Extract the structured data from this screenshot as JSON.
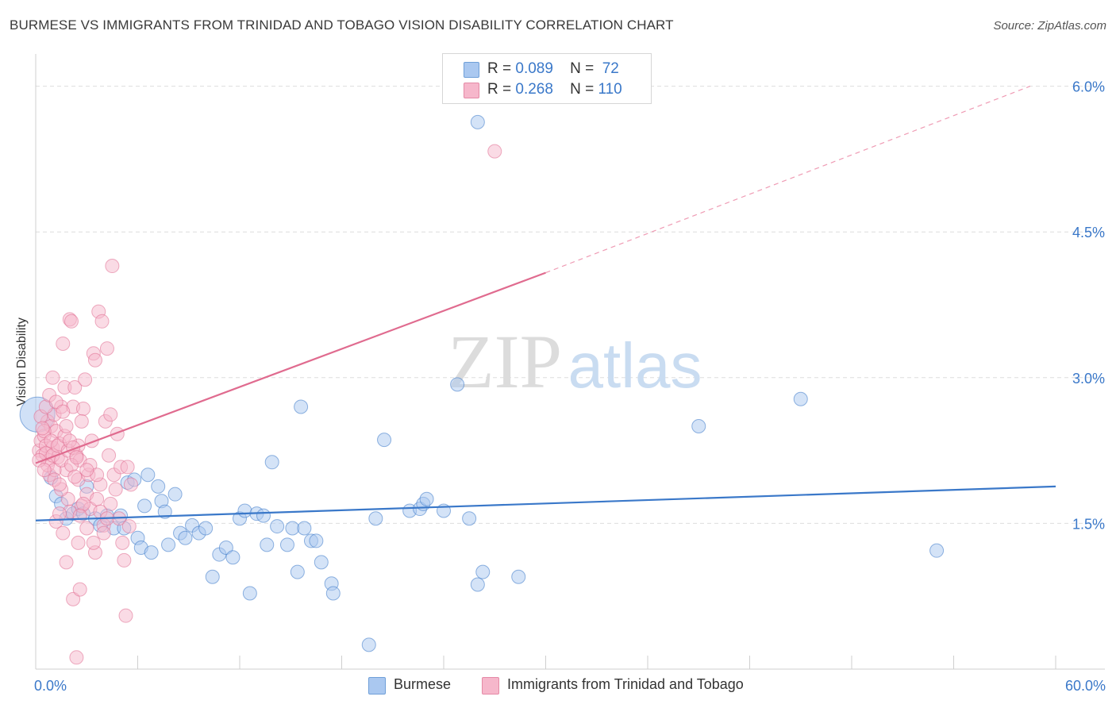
{
  "title": "BURMESE VS IMMIGRANTS FROM TRINIDAD AND TOBAGO VISION DISABILITY CORRELATION CHART",
  "source": "Source: ZipAtlas.com",
  "watermark": {
    "zip": "ZIP",
    "atlas": "atlas"
  },
  "legend_top": {
    "rows": [
      {
        "r_label": "R =",
        "r_value": "0.089",
        "n_label": "N =",
        "n_value": "72",
        "color": "#aac8f0"
      },
      {
        "r_label": "R =",
        "r_value": "0.268",
        "n_label": "N =",
        "n_value": "110",
        "color": "#f6b7cb"
      }
    ]
  },
  "legend_bottom": {
    "items": [
      {
        "label": "Burmese",
        "color": "#aac8f0"
      },
      {
        "label": "Immigrants from Trinidad and Tobago",
        "color": "#f6b7cb"
      }
    ]
  },
  "chart_data": {
    "type": "scatter",
    "title": "BURMESE VS IMMIGRANTS FROM TRINIDAD AND TOBAGO VISION DISABILITY CORRELATION CHART",
    "xlabel": "",
    "ylabel": "Vision Disability",
    "xlim": [
      0,
      60
    ],
    "ylim": [
      0,
      6.25
    ],
    "x_tick_labels": [
      "0.0%",
      "60.0%"
    ],
    "y_ticks": [
      1.5,
      3.0,
      4.5,
      6.0
    ],
    "y_tick_labels": [
      "1.5%",
      "3.0%",
      "4.5%",
      "6.0%"
    ],
    "grid": true,
    "series": [
      {
        "name": "Burmese",
        "color": "#3a78c9",
        "fill": "#aac8f0",
        "trend": {
          "x": [
            0,
            60
          ],
          "y": [
            1.53,
            1.88
          ]
        },
        "points": [
          [
            0.1,
            2.62
          ],
          [
            0.9,
            1.97
          ],
          [
            1.2,
            1.78
          ],
          [
            1.5,
            1.7
          ],
          [
            1.8,
            1.55
          ],
          [
            2.2,
            1.6
          ],
          [
            2.5,
            1.65
          ],
          [
            2.8,
            1.6
          ],
          [
            3.0,
            1.88
          ],
          [
            3.5,
            1.55
          ],
          [
            3.8,
            1.48
          ],
          [
            4.2,
            1.58
          ],
          [
            4.6,
            1.45
          ],
          [
            5.0,
            1.58
          ],
          [
            5.2,
            1.45
          ],
          [
            5.4,
            1.92
          ],
          [
            5.8,
            1.95
          ],
          [
            6.0,
            1.35
          ],
          [
            6.2,
            1.25
          ],
          [
            6.4,
            1.68
          ],
          [
            6.6,
            2.0
          ],
          [
            6.8,
            1.2
          ],
          [
            7.2,
            1.88
          ],
          [
            7.4,
            1.73
          ],
          [
            7.6,
            1.62
          ],
          [
            7.8,
            1.28
          ],
          [
            8.2,
            1.8
          ],
          [
            8.5,
            1.4
          ],
          [
            8.8,
            1.35
          ],
          [
            9.2,
            1.48
          ],
          [
            9.6,
            1.4
          ],
          [
            10.0,
            1.45
          ],
          [
            10.4,
            0.95
          ],
          [
            10.8,
            1.18
          ],
          [
            11.2,
            1.25
          ],
          [
            11.6,
            1.15
          ],
          [
            12.0,
            1.55
          ],
          [
            12.3,
            1.63
          ],
          [
            12.6,
            0.78
          ],
          [
            13.0,
            1.6
          ],
          [
            13.4,
            1.58
          ],
          [
            13.6,
            1.28
          ],
          [
            13.9,
            2.13
          ],
          [
            14.2,
            1.47
          ],
          [
            14.8,
            1.28
          ],
          [
            15.1,
            1.45
          ],
          [
            15.4,
            1.0
          ],
          [
            15.6,
            2.7
          ],
          [
            15.8,
            1.45
          ],
          [
            16.2,
            1.32
          ],
          [
            16.5,
            1.32
          ],
          [
            16.8,
            1.1
          ],
          [
            17.4,
            0.88
          ],
          [
            17.5,
            0.78
          ],
          [
            19.6,
            0.25
          ],
          [
            20.0,
            1.55
          ],
          [
            20.5,
            2.36
          ],
          [
            22.0,
            1.63
          ],
          [
            22.6,
            1.65
          ],
          [
            22.8,
            1.7
          ],
          [
            23.0,
            1.75
          ],
          [
            24.0,
            1.63
          ],
          [
            24.8,
            2.93
          ],
          [
            25.5,
            1.55
          ],
          [
            26.0,
            0.87
          ],
          [
            26.3,
            1.0
          ],
          [
            26.0,
            5.63
          ],
          [
            28.4,
            0.95
          ],
          [
            39.0,
            2.5
          ],
          [
            45.0,
            2.78
          ],
          [
            53.0,
            1.22
          ]
        ]
      },
      {
        "name": "Immigrants from Trinidad and Tobago",
        "color": "#e06b8f",
        "fill": "#f6b7cb",
        "trend": {
          "x": [
            0,
            30
          ],
          "y": [
            2.12,
            4.08
          ]
        },
        "trend_dashed": {
          "x": [
            30,
            58.5
          ],
          "y": [
            4.08,
            6.0
          ]
        },
        "points": [
          [
            0.2,
            2.25
          ],
          [
            0.3,
            2.35
          ],
          [
            0.4,
            2.2
          ],
          [
            0.5,
            2.4
          ],
          [
            0.6,
            2.3
          ],
          [
            0.7,
            2.55
          ],
          [
            0.8,
            2.15
          ],
          [
            0.9,
            2.5
          ],
          [
            1.0,
            2.28
          ],
          [
            1.1,
            2.62
          ],
          [
            1.2,
            2.45
          ],
          [
            1.3,
            2.18
          ],
          [
            1.4,
            2.32
          ],
          [
            1.5,
            2.7
          ],
          [
            1.6,
            3.35
          ],
          [
            1.7,
            2.9
          ],
          [
            1.8,
            2.05
          ],
          [
            1.9,
            1.75
          ],
          [
            2.0,
            3.6
          ],
          [
            2.1,
            3.58
          ],
          [
            2.2,
            2.7
          ],
          [
            2.3,
            2.9
          ],
          [
            2.4,
            2.2
          ],
          [
            2.5,
            1.95
          ],
          [
            2.6,
            2.15
          ],
          [
            2.7,
            1.68
          ],
          [
            2.8,
            2.68
          ],
          [
            2.9,
            2.98
          ],
          [
            3.0,
            1.8
          ],
          [
            3.1,
            2.0
          ],
          [
            3.2,
            1.65
          ],
          [
            3.3,
            2.35
          ],
          [
            3.4,
            3.25
          ],
          [
            3.5,
            3.18
          ],
          [
            3.6,
            1.75
          ],
          [
            3.7,
            3.68
          ],
          [
            3.8,
            1.9
          ],
          [
            3.9,
            3.58
          ],
          [
            4.0,
            1.48
          ],
          [
            4.1,
            2.55
          ],
          [
            4.2,
            3.3
          ],
          [
            4.3,
            2.2
          ],
          [
            4.4,
            2.62
          ],
          [
            4.5,
            4.15
          ],
          [
            4.6,
            2.0
          ],
          [
            4.7,
            1.85
          ],
          [
            4.8,
            2.42
          ],
          [
            4.9,
            1.55
          ],
          [
            5.0,
            2.08
          ],
          [
            5.1,
            1.3
          ],
          [
            5.2,
            1.12
          ],
          [
            5.3,
            0.55
          ],
          [
            5.4,
            2.08
          ],
          [
            5.5,
            1.47
          ],
          [
            5.6,
            1.9
          ],
          [
            1.0,
            3.0
          ],
          [
            1.5,
            1.85
          ],
          [
            2.0,
            1.62
          ],
          [
            2.5,
            1.3
          ],
          [
            3.0,
            1.45
          ],
          [
            3.5,
            1.2
          ],
          [
            4.0,
            1.4
          ],
          [
            1.2,
            1.52
          ],
          [
            1.8,
            1.1
          ],
          [
            2.2,
            0.72
          ],
          [
            2.6,
            0.82
          ],
          [
            3.2,
            2.1
          ],
          [
            3.6,
            2.0
          ],
          [
            4.4,
            1.7
          ],
          [
            2.4,
            0.12
          ],
          [
            1.6,
            1.4
          ],
          [
            0.8,
            2.0
          ],
          [
            1.4,
            1.6
          ],
          [
            2.8,
            1.7
          ],
          [
            0.5,
            2.45
          ],
          [
            0.6,
            2.22
          ],
          [
            0.7,
            2.1
          ],
          [
            0.9,
            2.35
          ],
          [
            1.0,
            2.2
          ],
          [
            1.1,
            2.05
          ],
          [
            1.3,
            2.3
          ],
          [
            1.5,
            2.15
          ],
          [
            1.7,
            2.4
          ],
          [
            1.9,
            2.25
          ],
          [
            2.1,
            2.1
          ],
          [
            2.3,
            1.98
          ],
          [
            2.5,
            2.3
          ],
          [
            2.7,
            2.55
          ],
          [
            0.3,
            2.6
          ],
          [
            0.4,
            2.48
          ],
          [
            0.6,
            2.7
          ],
          [
            0.8,
            2.82
          ],
          [
            1.2,
            2.75
          ],
          [
            1.6,
            2.65
          ],
          [
            1.8,
            2.5
          ],
          [
            2.0,
            2.35
          ],
          [
            2.2,
            2.28
          ],
          [
            2.4,
            2.18
          ],
          [
            3.0,
            2.05
          ],
          [
            3.8,
            1.62
          ],
          [
            4.2,
            1.55
          ],
          [
            0.2,
            2.15
          ],
          [
            0.5,
            2.05
          ],
          [
            1.1,
            1.95
          ],
          [
            1.4,
            1.9
          ],
          [
            2.6,
            1.58
          ],
          [
            3.4,
            1.3
          ],
          [
            27.0,
            5.33
          ]
        ]
      }
    ]
  }
}
